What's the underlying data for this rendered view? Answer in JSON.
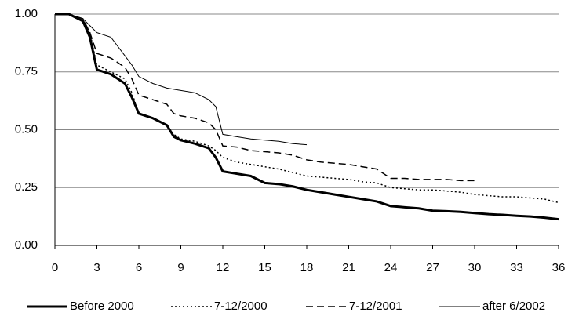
{
  "chart_data": {
    "type": "line",
    "x": [
      0,
      1,
      2,
      2.5,
      3,
      4,
      5,
      5.5,
      6,
      7,
      8,
      8.5,
      9,
      10,
      11,
      11.5,
      12,
      13,
      14,
      15,
      16,
      17,
      18,
      19,
      20,
      21,
      22,
      23,
      24,
      25,
      26,
      27,
      28,
      29,
      30,
      31,
      32,
      33,
      34,
      35,
      36
    ],
    "series": [
      {
        "name": "Before 2000",
        "color": "#000000",
        "dash": "solid",
        "width": 3,
        "values": [
          1,
          1,
          0.97,
          0.9,
          0.76,
          0.74,
          0.7,
          0.64,
          0.57,
          0.55,
          0.52,
          0.47,
          0.455,
          0.44,
          0.42,
          0.38,
          0.32,
          0.31,
          0.3,
          0.27,
          0.265,
          0.255,
          0.24,
          0.23,
          0.22,
          0.21,
          0.2,
          0.19,
          0.17,
          0.165,
          0.16,
          0.15,
          0.148,
          0.145,
          0.14,
          0.135,
          0.132,
          0.128,
          0.125,
          0.12,
          0.113
        ]
      },
      {
        "name": "7-12/2000",
        "color": "#000000",
        "dash": "dotted",
        "width": 1.5,
        "values": [
          1,
          1,
          0.975,
          0.92,
          0.78,
          0.75,
          0.72,
          0.66,
          0.57,
          0.55,
          0.52,
          0.48,
          0.46,
          0.45,
          0.43,
          0.41,
          0.38,
          0.36,
          0.35,
          0.34,
          0.33,
          0.315,
          0.3,
          0.295,
          0.29,
          0.285,
          0.275,
          0.27,
          0.25,
          0.245,
          0.24,
          0.24,
          0.235,
          0.23,
          0.22,
          0.215,
          0.21,
          0.21,
          0.205,
          0.2,
          0.185
        ]
      },
      {
        "name": "7-12/2001",
        "color": "#000000",
        "dash": "dashed",
        "width": 1.5,
        "values": [
          1,
          1,
          0.98,
          0.92,
          0.83,
          0.81,
          0.77,
          0.72,
          0.65,
          0.63,
          0.61,
          0.57,
          0.56,
          0.55,
          0.53,
          0.5,
          0.43,
          0.425,
          0.41,
          0.405,
          0.4,
          0.39,
          0.37,
          0.36,
          0.355,
          0.35,
          0.34,
          0.33,
          0.29,
          0.29,
          0.285,
          0.285,
          0.285,
          0.28,
          0.28,
          null,
          null,
          null,
          null,
          null,
          null
        ]
      },
      {
        "name": "after 6/2002",
        "color": "#000000",
        "dash": "solid",
        "width": 1,
        "values": [
          1,
          1,
          0.98,
          0.95,
          0.92,
          0.9,
          0.82,
          0.78,
          0.73,
          0.7,
          0.68,
          0.675,
          0.67,
          0.66,
          0.63,
          0.6,
          0.48,
          0.47,
          0.46,
          0.455,
          0.45,
          0.44,
          0.435,
          null,
          null,
          null,
          null,
          null,
          null,
          null,
          null,
          null,
          null,
          null,
          null,
          null,
          null,
          null,
          null,
          null,
          null
        ]
      }
    ],
    "xlim": [
      0,
      36
    ],
    "xticks": [
      0,
      3,
      6,
      9,
      12,
      15,
      18,
      21,
      24,
      27,
      30,
      33,
      36
    ],
    "ylim": [
      0,
      1
    ],
    "yticks": [
      {
        "value": 0,
        "label": "0.00"
      },
      {
        "value": 0.25,
        "label": "0.25"
      },
      {
        "value": 0.5,
        "label": "0.50"
      },
      {
        "value": 0.75,
        "label": "0.75"
      },
      {
        "value": 1,
        "label": "1.00"
      }
    ],
    "grid": true,
    "legend": "bottom"
  }
}
